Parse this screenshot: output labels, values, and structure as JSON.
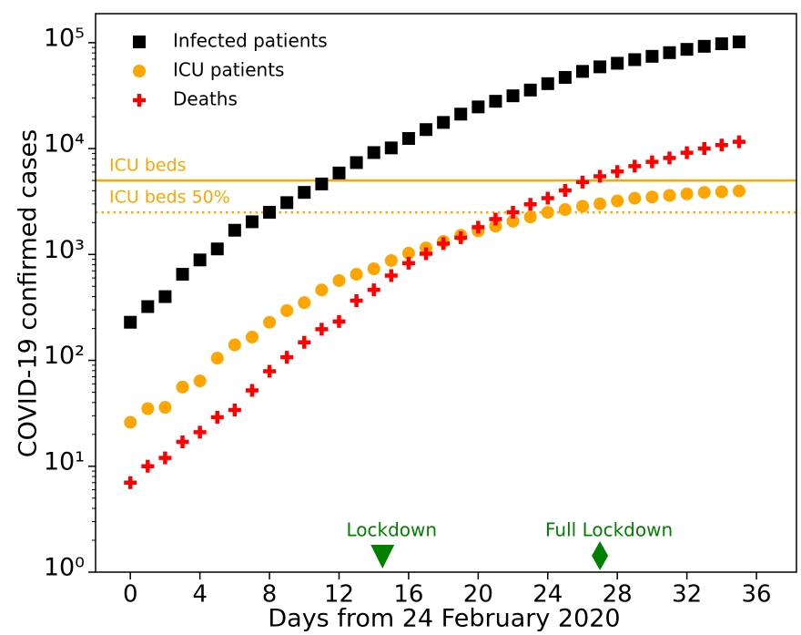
{
  "chart_data": {
    "type": "scatter",
    "xlabel": "Days from 24 February 2020",
    "ylabel": "COVID-19 confirmed cases",
    "log_y": true,
    "xlim": [
      -2,
      38.3
    ],
    "ylim": [
      1,
      188000
    ],
    "xticks": [
      0,
      4,
      8,
      12,
      16,
      20,
      24,
      28,
      32,
      36
    ],
    "yticks": [
      {
        "value": 1,
        "label": "10⁰"
      },
      {
        "value": 10,
        "label": "10¹"
      },
      {
        "value": 100,
        "label": "10²"
      },
      {
        "value": 1000,
        "label": "10³"
      },
      {
        "value": 10000,
        "label": "10⁴"
      },
      {
        "value": 100000,
        "label": "10⁵"
      }
    ],
    "legend": "upper left",
    "x": [
      0,
      1,
      2,
      3,
      4,
      5,
      6,
      7,
      8,
      9,
      10,
      11,
      12,
      13,
      14,
      15,
      16,
      17,
      18,
      19,
      20,
      21,
      22,
      23,
      24,
      25,
      26,
      27,
      28,
      29,
      30,
      31,
      32,
      33,
      34,
      35
    ],
    "series": [
      {
        "name": "Infected patients",
        "color": "#000000",
        "marker": "square",
        "values": [
          229,
          322,
          400,
          650,
          888,
          1128,
          1694,
          2036,
          2502,
          3089,
          3858,
          4636,
          5883,
          7375,
          9172,
          10149,
          12462,
          15113,
          17660,
          21157,
          24747,
          27980,
          31506,
          35713,
          41035,
          47021,
          53578,
          59138,
          63927,
          69176,
          74386,
          80539,
          86498,
          92472,
          97689,
          101739
        ]
      },
      {
        "name": "ICU patients",
        "color": "#ffa500",
        "marker": "circle",
        "values": [
          26,
          35,
          36,
          56,
          64,
          105,
          140,
          166,
          229,
          295,
          351,
          462,
          567,
          650,
          733,
          877,
          1028,
          1153,
          1328,
          1518,
          1672,
          1851,
          2060,
          2257,
          2498,
          2655,
          2857,
          3009,
          3204,
          3396,
          3489,
          3612,
          3732,
          3856,
          3906,
          3981
        ]
      },
      {
        "name": "Deaths",
        "color": "#ff0000",
        "marker": "plus",
        "values": [
          7,
          10,
          12,
          17,
          21,
          29,
          34,
          52,
          79,
          107,
          148,
          197,
          233,
          366,
          463,
          631,
          827,
          1016,
          1266,
          1441,
          1809,
          2158,
          2503,
          2978,
          3405,
          4032,
          4825,
          5476,
          6077,
          6820,
          7503,
          8165,
          9134,
          10023,
          10779,
          11591
        ]
      }
    ],
    "hlines": [
      {
        "label": "ICU beds",
        "value": 5000,
        "style": "solid",
        "color": "#ffa500"
      },
      {
        "label": "ICU beds 50%",
        "value": 2500,
        "style": "dotted",
        "color": "#ffa500"
      }
    ],
    "annotations": [
      {
        "text": "Lockdown",
        "x": 14.5,
        "marker": "triangle",
        "color": "#008000"
      },
      {
        "text": "Full Lockdown",
        "x": 27,
        "marker": "diamond",
        "color": "#008000"
      }
    ]
  }
}
